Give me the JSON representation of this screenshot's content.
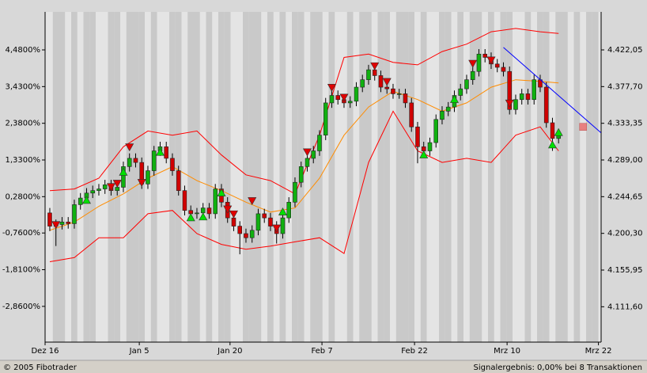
{
  "chart_data": {
    "type": "candlestick",
    "footer_left": "© 2005 Fibotrader",
    "footer_right": "Signalergebnis: 0,00% bei 8 Transaktionen",
    "xlim": [
      -0.77,
      89.94
    ],
    "xticks": [
      {
        "value": -0.77,
        "label": "Dez 16"
      },
      {
        "value": 14.6,
        "label": "Jan 5"
      },
      {
        "value": 29.4,
        "label": "Jan 20"
      },
      {
        "value": 44.4,
        "label": "Feb 7"
      },
      {
        "value": 59.5,
        "label": "Feb 22"
      },
      {
        "value": 74.6,
        "label": "Mrz 10"
      },
      {
        "value": 89.5,
        "label": "Mrz 22"
      }
    ],
    "ylim": [
      -3.883,
      5.568
    ],
    "yticks": [
      {
        "value": 4.48,
        "label": "4,4800%"
      },
      {
        "value": 3.43,
        "label": "3,4300%"
      },
      {
        "value": 2.38,
        "label": "2,3800%"
      },
      {
        "value": 1.33,
        "label": "1,3300%"
      },
      {
        "value": 0.28,
        "label": "0,2800%"
      },
      {
        "value": -0.76,
        "label": "-0,7600%"
      },
      {
        "value": -1.81,
        "label": "-1,8100%"
      },
      {
        "value": -2.86,
        "label": "-2,8600%"
      }
    ],
    "y2lim": [
      4068.85,
      4468.0
    ],
    "y2ticks": [
      {
        "value": 4422.05,
        "label": "4.422,05"
      },
      {
        "value": 4377.7,
        "label": "4.377,70"
      },
      {
        "value": 4333.35,
        "label": "4.333,35"
      },
      {
        "value": 4289.0,
        "label": "4.289,00"
      },
      {
        "value": 4244.65,
        "label": "4.244,65"
      },
      {
        "value": 4200.3,
        "label": "4.200,30"
      },
      {
        "value": 4155.95,
        "label": "4.155,95"
      },
      {
        "value": 4111.6,
        "label": "4.111,60"
      }
    ],
    "series": [
      {
        "axis": "y2",
        "up_color": "#10b010",
        "down_color": "#d00000",
        "x": [
          0,
          1,
          2,
          3,
          4,
          5,
          6,
          7,
          8,
          9,
          10,
          11,
          12,
          13,
          14,
          15,
          16,
          17,
          18,
          19,
          20,
          21,
          22,
          23,
          24,
          25,
          26,
          27,
          28,
          29,
          30,
          31,
          32,
          33,
          34,
          35,
          36,
          37,
          38,
          39,
          40,
          41,
          42,
          43,
          44,
          45,
          46,
          47,
          48,
          49,
          50,
          51,
          52,
          53,
          54,
          55,
          56,
          57,
          58,
          59,
          60,
          61,
          62,
          63,
          64,
          65,
          66,
          67,
          68,
          69,
          70,
          71,
          72,
          73,
          74,
          75,
          76,
          77,
          78,
          79,
          80,
          81,
          82,
          83
        ],
        "open": [
          4225,
          4209,
          4211,
          4214,
          4212,
          4235,
          4243,
          4249,
          4252,
          4254,
          4259,
          4252,
          4256,
          4281,
          4291,
          4286,
          4260,
          4276,
          4300,
          4305,
          4291,
          4276,
          4252,
          4228,
          4224,
          4225,
          4231,
          4224,
          4254,
          4238,
          4219,
          4209,
          4200,
          4195,
          4204,
          4224,
          4219,
          4209,
          4200,
          4219,
          4238,
          4262,
          4281,
          4291,
          4300,
          4319,
          4358,
          4367,
          4362,
          4358,
          4360,
          4377,
          4386,
          4398,
          4391,
          4377,
          4375,
          4369,
          4369,
          4358,
          4329,
          4305,
          4300,
          4310,
          4338,
          4348,
          4353,
          4367,
          4375,
          4386,
          4396,
          4417,
          4413,
          4405,
          4401,
          4396,
          4350,
          4362,
          4369,
          4362,
          4386,
          4377,
          4334,
          4315
        ],
        "high": [
          4231,
          4217,
          4220,
          4220,
          4241,
          4249,
          4255,
          4258,
          4260,
          4265,
          4265,
          4262,
          4287,
          4297,
          4297,
          4292,
          4282,
          4306,
          4311,
          4311,
          4297,
          4282,
          4258,
          4234,
          4231,
          4237,
          4237,
          4260,
          4260,
          4244,
          4225,
          4215,
          4206,
          4210,
          4230,
          4230,
          4225,
          4215,
          4225,
          4244,
          4268,
          4287,
          4297,
          4306,
          4325,
          4364,
          4373,
          4373,
          4368,
          4366,
          4383,
          4392,
          4404,
          4404,
          4397,
          4383,
          4381,
          4375,
          4375,
          4364,
          4335,
          4311,
          4316,
          4344,
          4354,
          4359,
          4373,
          4381,
          4392,
          4402,
          4423,
          4423,
          4419,
          4411,
          4407,
          4402,
          4368,
          4375,
          4375,
          4392,
          4392,
          4383,
          4340,
          4325
        ],
        "low": [
          4203,
          4185,
          4205,
          4206,
          4206,
          4229,
          4237,
          4243,
          4246,
          4248,
          4246,
          4246,
          4250,
          4275,
          4280,
          4254,
          4254,
          4270,
          4294,
          4285,
          4270,
          4246,
          4222,
          4218,
          4218,
          4219,
          4218,
          4218,
          4232,
          4213,
          4203,
          4175,
          4189,
          4189,
          4198,
          4213,
          4203,
          4188,
          4194,
          4213,
          4232,
          4256,
          4275,
          4285,
          4294,
          4313,
          4352,
          4356,
          4352,
          4352,
          4354,
          4371,
          4380,
          4385,
          4371,
          4369,
          4363,
          4363,
          4352,
          4323,
          4285,
          4294,
          4294,
          4304,
          4332,
          4342,
          4347,
          4361,
          4369,
          4380,
          4390,
          4407,
          4399,
          4395,
          4390,
          4344,
          4344,
          4356,
          4356,
          4356,
          4371,
          4328,
          4300,
          4309
        ],
        "close": [
          4209,
          4211,
          4214,
          4212,
          4235,
          4243,
          4249,
          4252,
          4254,
          4259,
          4252,
          4256,
          4281,
          4291,
          4286,
          4260,
          4276,
          4300,
          4305,
          4291,
          4276,
          4252,
          4228,
          4224,
          4225,
          4231,
          4224,
          4254,
          4238,
          4219,
          4209,
          4200,
          4195,
          4204,
          4224,
          4219,
          4209,
          4200,
          4219,
          4238,
          4262,
          4281,
          4291,
          4300,
          4319,
          4358,
          4367,
          4362,
          4358,
          4360,
          4377,
          4386,
          4398,
          4391,
          4377,
          4375,
          4369,
          4369,
          4358,
          4329,
          4305,
          4300,
          4310,
          4338,
          4348,
          4353,
          4367,
          4375,
          4386,
          4396,
          4417,
          4413,
          4405,
          4401,
          4396,
          4350,
          4362,
          4369,
          4362,
          4386,
          4377,
          4334,
          4315,
          4319
        ]
      }
    ],
    "bollinger": {
      "axis": "y2",
      "band_color": "#ff0000",
      "middle_color": "#ff8c00",
      "x": [
        0,
        4,
        8,
        12,
        16,
        20,
        24,
        28,
        32,
        36,
        40,
        44,
        48,
        52,
        56,
        60,
        64,
        68,
        72,
        76,
        80,
        83
      ],
      "upper": [
        4252,
        4254,
        4267,
        4305,
        4324,
        4319,
        4324,
        4295,
        4271,
        4264,
        4248,
        4319,
        4413,
        4417,
        4407,
        4404,
        4420,
        4429,
        4444,
        4448,
        4444,
        4442
      ],
      "middle": [
        4204,
        4214,
        4233,
        4248,
        4267,
        4281,
        4264,
        4252,
        4238,
        4226,
        4231,
        4267,
        4319,
        4353,
        4372,
        4362,
        4348,
        4358,
        4377,
        4386,
        4384,
        4382
      ],
      "lower": [
        4166,
        4171,
        4195,
        4195,
        4224,
        4228,
        4200,
        4187,
        4181,
        4185,
        4190,
        4195,
        4176,
        4286,
        4348,
        4300,
        4286,
        4291,
        4286,
        4319,
        4329,
        4300
      ]
    },
    "buy_signals": {
      "axis": "y2",
      "color": "#00e000",
      "x": [
        6,
        12,
        18,
        23,
        25,
        28,
        38,
        61,
        66,
        82,
        83
      ],
      "values": [
        4245,
        4279,
        4303,
        4224,
        4225,
        4254,
        4231,
        4300,
        4367,
        4312,
        4327
      ]
    },
    "sell_signals": {
      "axis": "y2",
      "color": "#e00000",
      "x": [
        1,
        10,
        11,
        13,
        15,
        29,
        30,
        33,
        37,
        42,
        46,
        48,
        53,
        55,
        69,
        72,
        75
      ],
      "values": [
        4206,
        4252,
        4256,
        4300,
        4257,
        4225,
        4219,
        4235,
        4202,
        4294,
        4372,
        4360,
        4398,
        4379,
        4401,
        4405,
        4353
      ]
    },
    "trendline": {
      "axis": "y2",
      "color": "#0000ff",
      "x": [
        74,
        89.9
      ],
      "values": [
        4425,
        4322
      ]
    },
    "marker": {
      "axis": "y2",
      "color": "#e88080",
      "x": 87,
      "value": 4329
    }
  }
}
